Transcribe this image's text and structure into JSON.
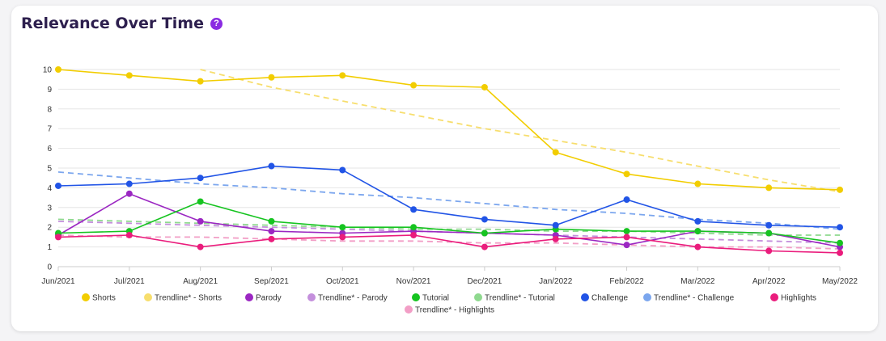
{
  "header": {
    "title": "Relevance Over Time",
    "info_icon": "?"
  },
  "chart_data": {
    "type": "line",
    "title": "Relevance Over Time",
    "categories": [
      "Jun/2021",
      "Jul/2021",
      "Aug/2021",
      "Sep/2021",
      "Oct/2021",
      "Nov/2021",
      "Dec/2021",
      "Jan/2022",
      "Feb/2022",
      "Mar/2022",
      "Apr/2022",
      "May/2022"
    ],
    "ylim": [
      0,
      10
    ],
    "yticks": [
      0,
      1,
      2,
      3,
      4,
      5,
      6,
      7,
      8,
      9,
      10
    ],
    "grid": true,
    "legend_position": "bottom",
    "series": [
      {
        "name": "Shorts",
        "color": "#f2cd00",
        "dash": false,
        "values": [
          10,
          9.7,
          9.4,
          9.6,
          9.7,
          9.2,
          9.1,
          5.8,
          4.7,
          4.2,
          4.0,
          3.9
        ]
      },
      {
        "name": "Trendline* - Shorts",
        "color": "#f7de6d",
        "dash": true,
        "values": [
          null,
          null,
          10.0,
          9.1,
          8.4,
          7.7,
          7.0,
          6.4,
          5.8,
          5.1,
          4.4,
          3.8
        ]
      },
      {
        "name": "Parody",
        "color": "#9b27c2",
        "dash": false,
        "values": [
          1.6,
          3.7,
          2.3,
          1.8,
          1.7,
          1.8,
          1.7,
          1.6,
          1.1,
          1.8,
          1.7,
          1.0
        ]
      },
      {
        "name": "Trendline* - Parody",
        "color": "#c48fdc",
        "dash": true,
        "values": [
          2.3,
          2.2,
          2.1,
          2.0,
          1.9,
          1.8,
          1.7,
          1.6,
          1.5,
          1.4,
          1.3,
          1.2
        ]
      },
      {
        "name": "Tutorial",
        "color": "#16c420",
        "dash": false,
        "values": [
          1.7,
          1.8,
          3.3,
          2.3,
          2.0,
          2.0,
          1.7,
          1.9,
          1.8,
          1.8,
          1.7,
          1.2
        ]
      },
      {
        "name": "Trendline* - Tutorial",
        "color": "#8fd98f",
        "dash": true,
        "values": [
          2.4,
          2.3,
          2.2,
          2.1,
          2.0,
          1.9,
          1.9,
          1.8,
          1.8,
          1.7,
          1.6,
          1.6
        ]
      },
      {
        "name": "Challenge",
        "color": "#2154e6",
        "dash": false,
        "values": [
          4.1,
          4.2,
          4.5,
          5.1,
          4.9,
          2.9,
          2.4,
          2.1,
          3.4,
          2.3,
          2.1,
          2.0
        ]
      },
      {
        "name": "Trendline* - Challenge",
        "color": "#7ba6ee",
        "dash": true,
        "values": [
          4.8,
          4.5,
          4.2,
          4.0,
          3.7,
          3.5,
          3.2,
          2.9,
          2.7,
          2.4,
          2.2,
          1.9
        ]
      },
      {
        "name": "Highlights",
        "color": "#ea1c7c",
        "dash": false,
        "values": [
          1.5,
          1.6,
          1.0,
          1.4,
          1.5,
          1.6,
          1.0,
          1.4,
          1.5,
          1.0,
          0.8,
          0.7
        ]
      },
      {
        "name": "Trendline* - Highlights",
        "color": "#f29ec6",
        "dash": true,
        "values": [
          1.6,
          1.5,
          1.5,
          1.4,
          1.3,
          1.3,
          1.2,
          1.2,
          1.1,
          1.0,
          1.0,
          0.9
        ]
      }
    ]
  }
}
